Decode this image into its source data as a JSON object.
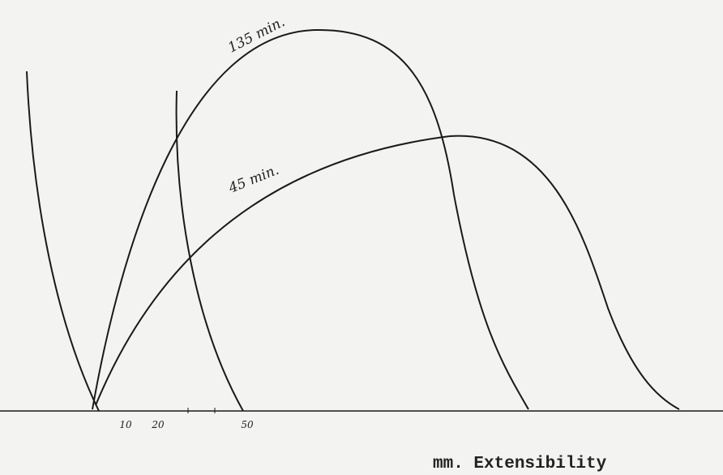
{
  "curve_labels": [
    "135 min.",
    "45 min."
  ],
  "axis": {
    "tick_labels": [
      "10",
      "20",
      "50"
    ],
    "title": "mm. Extensibility"
  }
}
